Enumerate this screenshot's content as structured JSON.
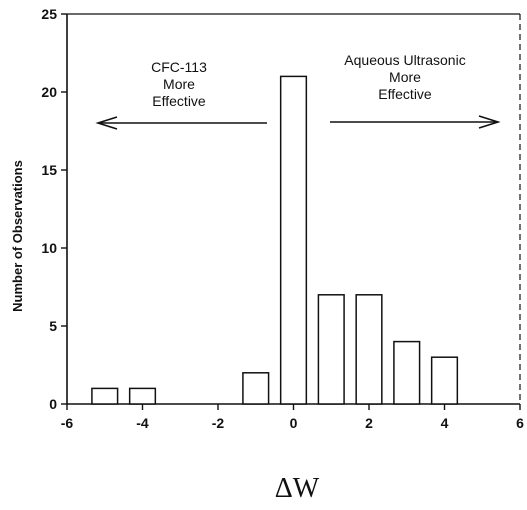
{
  "chart_data": {
    "type": "bar",
    "xlabel": "ΔW",
    "ylabel": "Number of Observations",
    "xlim": [
      -6,
      6
    ],
    "ylim": [
      0,
      25
    ],
    "xticks": [
      "-6",
      "-4",
      "-2",
      "0",
      "2",
      "4",
      "6"
    ],
    "yticks": [
      "0",
      "5",
      "10",
      "15",
      "20",
      "25"
    ],
    "bars": [
      {
        "x": -5,
        "value": 1
      },
      {
        "x": -4,
        "value": 1
      },
      {
        "x": -1,
        "value": 2
      },
      {
        "x": 0,
        "value": 21
      },
      {
        "x": 1,
        "value": 7
      },
      {
        "x": 2,
        "value": 7
      },
      {
        "x": 3,
        "value": 4
      },
      {
        "x": 4,
        "value": 3
      }
    ],
    "annotations": {
      "left": [
        "CFC-113",
        "More",
        "Effective"
      ],
      "right": [
        "Aqueous Ultrasonic",
        "More",
        "Effective"
      ]
    }
  }
}
